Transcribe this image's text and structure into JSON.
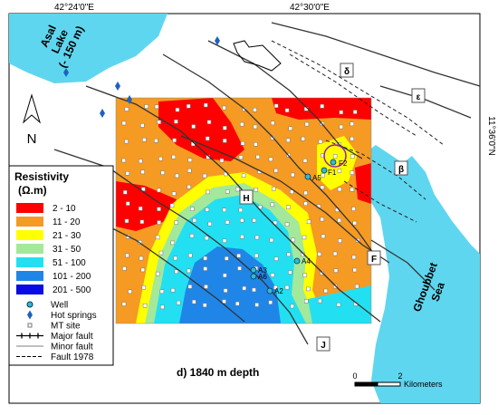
{
  "coords": {
    "lon_left": "42°24'0\"E",
    "lon_right": "42°30'0\"E",
    "lat": "11°36'0\"N"
  },
  "north": "N",
  "lake": {
    "label": [
      "Asal",
      "Lake",
      "(- 150 m)"
    ]
  },
  "sea": {
    "label": [
      "Ghoubbet",
      "Sea"
    ]
  },
  "zones": [
    "δ",
    "ε",
    "β",
    "H",
    "F",
    "J"
  ],
  "wells": [
    "F2",
    "F1",
    "A5",
    "A4",
    "A3",
    "A6",
    "A2"
  ],
  "legend": {
    "title": "Resistivity",
    "unit": "(Ω.m)",
    "items": [
      {
        "label": "2 - 10",
        "color": "#ff0000"
      },
      {
        "label": "11 - 20",
        "color": "#f59a23"
      },
      {
        "label": "21 - 30",
        "color": "#ffff00"
      },
      {
        "label": "31 - 50",
        "color": "#a3e89b"
      },
      {
        "label": "51 - 100",
        "color": "#22e0f2"
      },
      {
        "label": "101 - 200",
        "color": "#1f86e8"
      },
      {
        "label": "201 - 500",
        "color": "#0a0ae6"
      }
    ],
    "symbols": [
      "Well",
      "Hot springs",
      "MT site",
      "Major fault",
      "Minor fault",
      "Fault 1978"
    ]
  },
  "caption": "d) 1840 m depth",
  "scale": {
    "ticks": [
      "0",
      "2"
    ],
    "unit": "Kilometers"
  }
}
